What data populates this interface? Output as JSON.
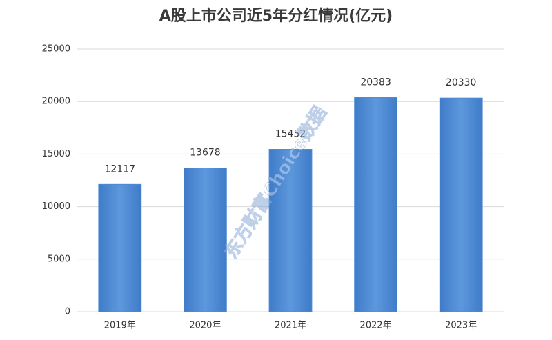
{
  "chart_data": {
    "type": "bar",
    "title": "A股上市公司近5年分红情况(亿元)",
    "categories": [
      "2019年",
      "2020年",
      "2021年",
      "2022年",
      "2023年"
    ],
    "values": [
      12117,
      13678,
      15452,
      20383,
      20330
    ],
    "color": "#4f8ad3",
    "ylim": [
      0,
      25000
    ],
    "yticks": [
      0,
      5000,
      10000,
      15000,
      20000,
      25000
    ],
    "grid": true,
    "watermark": "东方财富Choice数据"
  }
}
